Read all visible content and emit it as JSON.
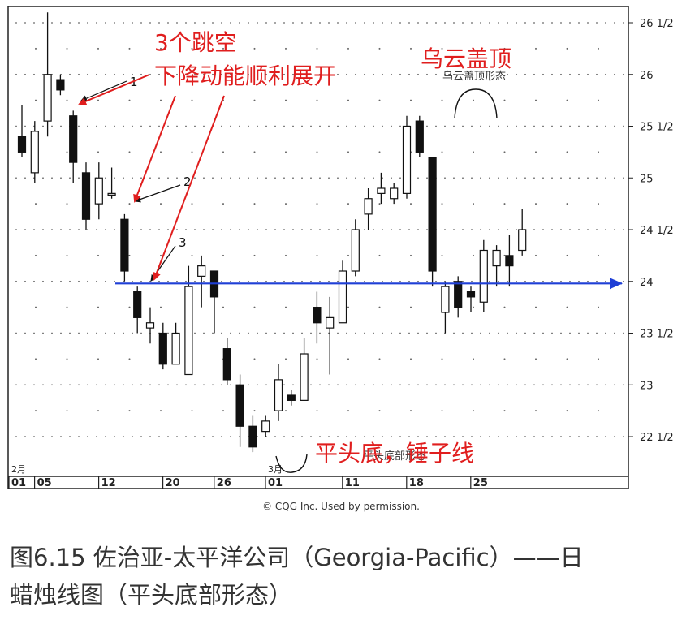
{
  "chart_data": {
    "type": "candlestick",
    "y_ticks": [
      "26 1/2",
      "26",
      "25 1/2",
      "25",
      "24 1/2",
      "24",
      "23 1/2",
      "23",
      "22 1/2"
    ],
    "y_tick_values": [
      26.5,
      26,
      25.5,
      25,
      24.5,
      24,
      23.5,
      23,
      22.5
    ],
    "ylim": [
      22.25,
      26.75
    ],
    "x_ticks": [
      {
        "label": "01",
        "index": 0
      },
      {
        "label": "05",
        "index": 2
      },
      {
        "label": "12",
        "index": 7
      },
      {
        "label": "20",
        "index": 12
      },
      {
        "label": "26",
        "index": 16
      },
      {
        "label": "01",
        "index": 20
      },
      {
        "label": "11",
        "index": 26
      },
      {
        "label": "18",
        "index": 31
      },
      {
        "label": "25",
        "index": 36
      }
    ],
    "month_labels": [
      {
        "label": "2月",
        "index": 0
      },
      {
        "label": "3月",
        "index": 20
      }
    ],
    "candles": [
      {
        "o": 25.4,
        "h": 25.7,
        "l": 25.2,
        "c": 25.25
      },
      {
        "o": 25.05,
        "h": 25.55,
        "l": 24.95,
        "c": 25.45
      },
      {
        "o": 25.55,
        "h": 26.6,
        "l": 25.4,
        "c": 26.0
      },
      {
        "o": 25.95,
        "h": 26.0,
        "l": 25.8,
        "c": 25.85
      },
      {
        "o": 25.6,
        "h": 25.65,
        "l": 24.95,
        "c": 25.15
      },
      {
        "o": 25.05,
        "h": 25.15,
        "l": 24.5,
        "c": 24.6
      },
      {
        "o": 24.75,
        "h": 25.15,
        "l": 24.6,
        "c": 25.0
      },
      {
        "o": 24.85,
        "h": 25.1,
        "l": 24.8,
        "c": 24.85
      },
      {
        "o": 24.6,
        "h": 24.65,
        "l": 24.0,
        "c": 24.1
      },
      {
        "o": 23.9,
        "h": 23.95,
        "l": 23.5,
        "c": 23.65
      },
      {
        "o": 23.55,
        "h": 23.75,
        "l": 23.4,
        "c": 23.6
      },
      {
        "o": 23.5,
        "h": 23.6,
        "l": 23.15,
        "c": 23.2
      },
      {
        "o": 23.2,
        "h": 23.6,
        "l": 23.2,
        "c": 23.5
      },
      {
        "o": 23.1,
        "h": 24.15,
        "l": 23.1,
        "c": 23.95
      },
      {
        "o": 24.05,
        "h": 24.25,
        "l": 23.75,
        "c": 24.15
      },
      {
        "o": 24.1,
        "h": 24.1,
        "l": 23.5,
        "c": 23.85
      },
      {
        "o": 23.35,
        "h": 23.45,
        "l": 23.0,
        "c": 23.05
      },
      {
        "o": 23.0,
        "h": 23.1,
        "l": 22.4,
        "c": 22.6
      },
      {
        "o": 22.6,
        "h": 22.7,
        "l": 22.35,
        "c": 22.4
      },
      {
        "o": 22.55,
        "h": 22.7,
        "l": 22.5,
        "c": 22.65
      },
      {
        "o": 22.75,
        "h": 23.2,
        "l": 22.65,
        "c": 23.05
      },
      {
        "o": 22.9,
        "h": 22.95,
        "l": 22.8,
        "c": 22.85
      },
      {
        "o": 22.85,
        "h": 23.45,
        "l": 22.85,
        "c": 23.3
      },
      {
        "o": 23.75,
        "h": 23.9,
        "l": 23.4,
        "c": 23.6
      },
      {
        "o": 23.55,
        "h": 23.85,
        "l": 23.1,
        "c": 23.65
      },
      {
        "o": 23.6,
        "h": 24.2,
        "l": 23.6,
        "c": 24.1
      },
      {
        "o": 24.1,
        "h": 24.6,
        "l": 24.05,
        "c": 24.5
      },
      {
        "o": 24.65,
        "h": 24.9,
        "l": 24.5,
        "c": 24.8
      },
      {
        "o": 24.85,
        "h": 25.05,
        "l": 24.75,
        "c": 24.9
      },
      {
        "o": 24.8,
        "h": 24.95,
        "l": 24.75,
        "c": 24.9
      },
      {
        "o": 24.85,
        "h": 25.6,
        "l": 24.8,
        "c": 25.5
      },
      {
        "o": 25.55,
        "h": 25.6,
        "l": 25.2,
        "c": 25.25
      },
      {
        "o": 25.2,
        "h": 25.2,
        "l": 23.95,
        "c": 24.1
      },
      {
        "o": 23.7,
        "h": 24.0,
        "l": 23.5,
        "c": 23.95
      },
      {
        "o": 24.0,
        "h": 24.05,
        "l": 23.65,
        "c": 23.75
      },
      {
        "o": 23.9,
        "h": 23.95,
        "l": 23.7,
        "c": 23.85
      },
      {
        "o": 23.8,
        "h": 24.4,
        "l": 23.7,
        "c": 24.3
      },
      {
        "o": 24.15,
        "h": 24.35,
        "l": 23.95,
        "c": 24.3
      },
      {
        "o": 24.25,
        "h": 24.45,
        "l": 23.95,
        "c": 24.15
      },
      {
        "o": 24.3,
        "h": 24.7,
        "l": 24.25,
        "c": 24.5
      }
    ],
    "support_line": {
      "y": 23.98,
      "color": "#1f3fd6"
    },
    "annotation_color": "#e01e1e",
    "annotations": {
      "gaps_title": "3个跳空",
      "gaps_subtitle": "下降动能顺利展开",
      "gap_numbers": [
        "1",
        "2",
        "3"
      ],
      "dark_cloud_red": "乌云盖顶",
      "dark_cloud_printed": "乌云盖顶形态",
      "tweezers_red": "平头底，锤子线",
      "tweezers_printed": "平头底部形态"
    },
    "credit": "© CQG Inc. Used by permission."
  },
  "caption": {
    "line1": "图6.15 佐治亚-太平洋公司（Georgia-Pacific）——日",
    "line2": "蜡烛线图（平头底部形态）"
  }
}
